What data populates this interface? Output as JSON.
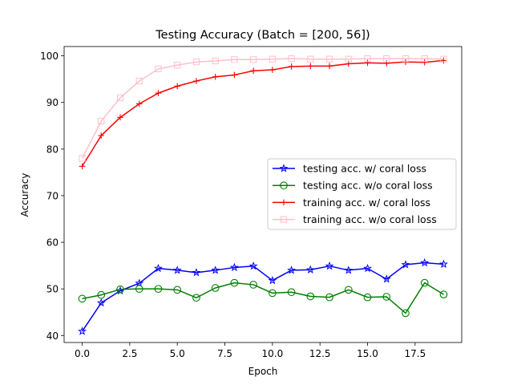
{
  "chart_data": {
    "type": "line",
    "title": "Testing Accuracy (Batch = [200, 56])",
    "xlabel": "Epoch",
    "ylabel": "Accuracy",
    "xlim": [
      -0.95,
      19.95
    ],
    "ylim": [
      38.5,
      102.0
    ],
    "xticks": [
      0.0,
      2.5,
      5.0,
      7.5,
      10.0,
      12.5,
      15.0,
      17.5
    ],
    "xtick_labels": [
      "0.0",
      "2.5",
      "5.0",
      "7.5",
      "10.0",
      "12.5",
      "15.0",
      "17.5"
    ],
    "yticks": [
      40,
      50,
      60,
      70,
      80,
      90,
      100
    ],
    "ytick_labels": [
      "40",
      "50",
      "60",
      "70",
      "80",
      "90",
      "100"
    ],
    "grid": false,
    "legend_position": "center-right",
    "x": [
      0,
      1,
      2,
      3,
      4,
      5,
      6,
      7,
      8,
      9,
      10,
      11,
      12,
      13,
      14,
      15,
      16,
      17,
      18,
      19
    ],
    "series": [
      {
        "name": "testing acc. w/ coral loss",
        "color": "#0000ff",
        "marker": "star",
        "values": [
          40.9,
          47.0,
          49.6,
          51.2,
          54.4,
          54.0,
          53.5,
          54.0,
          54.6,
          54.9,
          51.8,
          54.0,
          54.1,
          54.9,
          54.0,
          54.4,
          52.1,
          55.2,
          55.6,
          55.3
        ]
      },
      {
        "name": "testing acc. w/o coral loss",
        "color": "#008000",
        "marker": "circle",
        "values": [
          47.9,
          48.7,
          49.9,
          50.0,
          50.0,
          49.8,
          48.1,
          50.2,
          51.3,
          50.9,
          49.1,
          49.3,
          48.4,
          48.2,
          49.8,
          48.2,
          48.3,
          44.8,
          51.3,
          48.8
        ]
      },
      {
        "name": "training acc. w/ coral loss",
        "color": "#ff0000",
        "marker": "plus",
        "values": [
          76.3,
          82.9,
          86.8,
          89.7,
          92.0,
          93.5,
          94.6,
          95.5,
          95.9,
          96.8,
          97.0,
          97.7,
          97.8,
          97.8,
          98.3,
          98.5,
          98.4,
          98.7,
          98.6,
          99.0
        ]
      },
      {
        "name": "training acc. w/o coral loss",
        "color": "#ffc0cb",
        "marker": "square",
        "values": [
          78.0,
          86.0,
          91.0,
          94.6,
          97.2,
          98.0,
          98.7,
          98.9,
          99.2,
          99.2,
          99.3,
          99.4,
          99.3,
          99.3,
          99.3,
          99.4,
          99.4,
          99.4,
          99.4,
          99.3
        ]
      }
    ]
  }
}
